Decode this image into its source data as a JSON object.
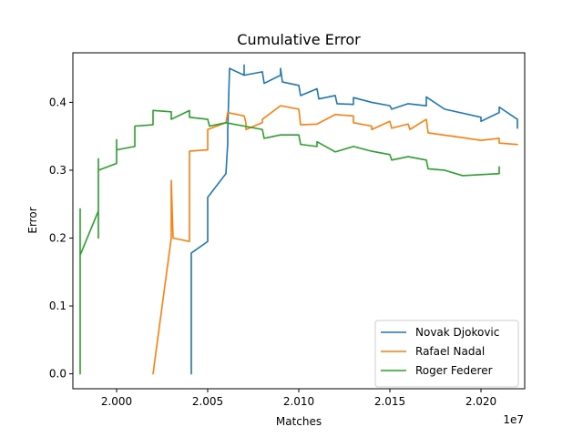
{
  "chart_data": {
    "type": "line",
    "title": "Cumulative Error",
    "xlabel": "Matches",
    "ylabel": "Error",
    "x_offset_label": "1e7",
    "xlim": [
      19976000,
      20224000
    ],
    "ylim": [
      -0.022,
      0.473
    ],
    "x_ticks": [
      20000000,
      20050000,
      20100000,
      20150000,
      20200000
    ],
    "x_tick_labels": [
      "2.000",
      "2.005",
      "2.010",
      "2.015",
      "2.020"
    ],
    "y_ticks": [
      0.0,
      0.1,
      0.2,
      0.3,
      0.4
    ],
    "y_tick_labels": [
      "0.0",
      "0.1",
      "0.2",
      "0.3",
      "0.4"
    ],
    "grid": false,
    "legend_position": "lower-right",
    "series": [
      {
        "name": "Novak Djokovic",
        "color": "#1f77b4",
        "points": [
          [
            20041000,
            0.0
          ],
          [
            20041000,
            0.178
          ],
          [
            20050000,
            0.195
          ],
          [
            20050000,
            0.26
          ],
          [
            20060000,
            0.295
          ],
          [
            20061000,
            0.34
          ],
          [
            20061000,
            0.36
          ],
          [
            20062000,
            0.45
          ],
          [
            20070000,
            0.44
          ],
          [
            20070000,
            0.455
          ],
          [
            20070000,
            0.44
          ],
          [
            20080000,
            0.445
          ],
          [
            20081000,
            0.428
          ],
          [
            20090000,
            0.44
          ],
          [
            20090000,
            0.45
          ],
          [
            20091000,
            0.43
          ],
          [
            20100000,
            0.425
          ],
          [
            20101000,
            0.41
          ],
          [
            20110000,
            0.42
          ],
          [
            20111000,
            0.405
          ],
          [
            20120000,
            0.41
          ],
          [
            20121000,
            0.398
          ],
          [
            20130000,
            0.397
          ],
          [
            20130000,
            0.407
          ],
          [
            20140000,
            0.4
          ],
          [
            20150000,
            0.395
          ],
          [
            20151000,
            0.39
          ],
          [
            20160000,
            0.398
          ],
          [
            20170000,
            0.395
          ],
          [
            20170000,
            0.408
          ],
          [
            20180000,
            0.39
          ],
          [
            20200000,
            0.378
          ],
          [
            20200000,
            0.372
          ],
          [
            20210000,
            0.385
          ],
          [
            20210000,
            0.393
          ],
          [
            20220000,
            0.375
          ],
          [
            20220000,
            0.362
          ]
        ]
      },
      {
        "name": "Rafael Nadal",
        "color": "#ff7f0e",
        "points": [
          [
            20020000,
            0.0
          ],
          [
            20030000,
            0.2
          ],
          [
            20030000,
            0.285
          ],
          [
            20031000,
            0.2
          ],
          [
            20040000,
            0.195
          ],
          [
            20040000,
            0.328
          ],
          [
            20050000,
            0.33
          ],
          [
            20050000,
            0.36
          ],
          [
            20060000,
            0.37
          ],
          [
            20061000,
            0.385
          ],
          [
            20070000,
            0.38
          ],
          [
            20071000,
            0.37
          ],
          [
            20071000,
            0.36
          ],
          [
            20080000,
            0.37
          ],
          [
            20080000,
            0.375
          ],
          [
            20090000,
            0.395
          ],
          [
            20100000,
            0.39
          ],
          [
            20101000,
            0.367
          ],
          [
            20110000,
            0.368
          ],
          [
            20120000,
            0.382
          ],
          [
            20130000,
            0.38
          ],
          [
            20130000,
            0.37
          ],
          [
            20140000,
            0.365
          ],
          [
            20140000,
            0.36
          ],
          [
            20150000,
            0.372
          ],
          [
            20151000,
            0.362
          ],
          [
            20160000,
            0.368
          ],
          [
            20161000,
            0.36
          ],
          [
            20170000,
            0.375
          ],
          [
            20171000,
            0.355
          ],
          [
            20190000,
            0.348
          ],
          [
            20200000,
            0.344
          ],
          [
            20210000,
            0.347
          ],
          [
            20210000,
            0.34
          ],
          [
            20220000,
            0.338
          ]
        ]
      },
      {
        "name": "Roger Federer",
        "color": "#2ca02c",
        "points": [
          [
            19980000,
            0.0
          ],
          [
            19980000,
            0.243
          ],
          [
            19980000,
            0.175
          ],
          [
            19990000,
            0.24
          ],
          [
            19990000,
            0.2
          ],
          [
            19990000,
            0.317
          ],
          [
            19990000,
            0.3
          ],
          [
            20000000,
            0.31
          ],
          [
            20000000,
            0.345
          ],
          [
            20000000,
            0.33
          ],
          [
            20010000,
            0.335
          ],
          [
            20010000,
            0.365
          ],
          [
            20020000,
            0.367
          ],
          [
            20020000,
            0.388
          ],
          [
            20030000,
            0.386
          ],
          [
            20030000,
            0.375
          ],
          [
            20040000,
            0.388
          ],
          [
            20040000,
            0.378
          ],
          [
            20050000,
            0.375
          ],
          [
            20051000,
            0.365
          ],
          [
            20060000,
            0.37
          ],
          [
            20070000,
            0.365
          ],
          [
            20080000,
            0.36
          ],
          [
            20081000,
            0.347
          ],
          [
            20090000,
            0.352
          ],
          [
            20100000,
            0.352
          ],
          [
            20101000,
            0.338
          ],
          [
            20110000,
            0.335
          ],
          [
            20110000,
            0.342
          ],
          [
            20120000,
            0.327
          ],
          [
            20130000,
            0.335
          ],
          [
            20140000,
            0.328
          ],
          [
            20150000,
            0.323
          ],
          [
            20151000,
            0.315
          ],
          [
            20160000,
            0.32
          ],
          [
            20170000,
            0.315
          ],
          [
            20171000,
            0.302
          ],
          [
            20180000,
            0.3
          ],
          [
            20190000,
            0.292
          ],
          [
            20210000,
            0.295
          ],
          [
            20210000,
            0.305
          ]
        ]
      }
    ]
  }
}
